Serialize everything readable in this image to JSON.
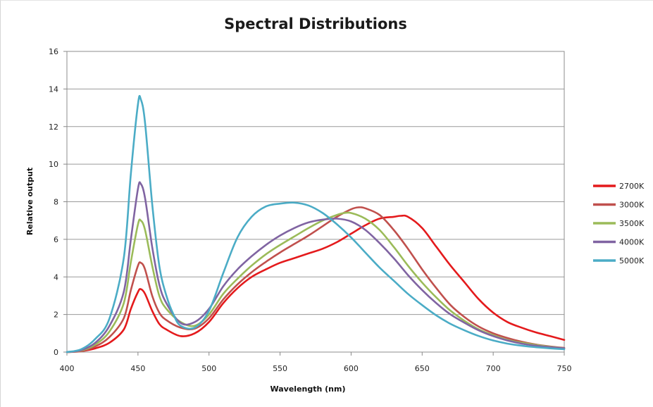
{
  "chart_data": {
    "type": "line",
    "title": "Spectral Distributions",
    "xlabel": "Wavelength (nm)",
    "ylabel": "Relative output",
    "xlim": [
      400,
      750
    ],
    "ylim": [
      0,
      16
    ],
    "x_ticks": [
      "400",
      "450",
      "500",
      "550",
      "600",
      "650",
      "700",
      "750"
    ],
    "y_ticks": [
      "0",
      "2",
      "4",
      "6",
      "8",
      "10",
      "12",
      "14",
      "16"
    ],
    "grid": "horizontal",
    "legend_position": "right",
    "series": [
      {
        "name": "2700K",
        "color": "#e41a1c",
        "x": [
          400,
          410,
          420,
          430,
          440,
          445,
          450,
          452,
          455,
          460,
          465,
          470,
          480,
          490,
          500,
          510,
          520,
          530,
          540,
          550,
          560,
          570,
          580,
          590,
          600,
          610,
          620,
          630,
          635,
          640,
          650,
          660,
          670,
          680,
          690,
          700,
          710,
          720,
          730,
          740,
          750
        ],
        "y": [
          0,
          0.05,
          0.2,
          0.5,
          1.2,
          2.3,
          3.2,
          3.35,
          3.1,
          2.2,
          1.5,
          1.2,
          0.85,
          1.0,
          1.6,
          2.6,
          3.4,
          4.0,
          4.4,
          4.75,
          5.0,
          5.25,
          5.5,
          5.85,
          6.3,
          6.75,
          7.1,
          7.2,
          7.25,
          7.2,
          6.6,
          5.6,
          4.6,
          3.7,
          2.8,
          2.1,
          1.6,
          1.3,
          1.05,
          0.85,
          0.65
        ]
      },
      {
        "name": "3000K",
        "color": "#c0504d",
        "x": [
          400,
          410,
          420,
          430,
          440,
          445,
          450,
          452,
          455,
          460,
          465,
          470,
          480,
          490,
          500,
          510,
          520,
          530,
          540,
          550,
          560,
          570,
          580,
          590,
          600,
          605,
          610,
          620,
          630,
          640,
          650,
          660,
          670,
          680,
          690,
          700,
          710,
          720,
          730,
          740,
          750
        ],
        "y": [
          0,
          0.05,
          0.3,
          0.8,
          1.8,
          3.3,
          4.6,
          4.75,
          4.4,
          3.0,
          2.1,
          1.7,
          1.3,
          1.25,
          1.8,
          2.8,
          3.6,
          4.25,
          4.8,
          5.3,
          5.75,
          6.2,
          6.7,
          7.2,
          7.6,
          7.7,
          7.65,
          7.3,
          6.5,
          5.5,
          4.4,
          3.4,
          2.5,
          1.85,
          1.35,
          1.0,
          0.75,
          0.55,
          0.4,
          0.3,
          0.22
        ]
      },
      {
        "name": "3500K",
        "color": "#9bbb59",
        "x": [
          400,
          410,
          420,
          430,
          440,
          445,
          450,
          452,
          455,
          460,
          465,
          470,
          480,
          490,
          500,
          510,
          520,
          530,
          540,
          550,
          560,
          570,
          580,
          590,
          595,
          600,
          610,
          620,
          630,
          640,
          650,
          660,
          670,
          680,
          690,
          700,
          710,
          720,
          730,
          740,
          750
        ],
        "y": [
          0,
          0.08,
          0.4,
          1.1,
          2.6,
          4.8,
          6.8,
          7.0,
          6.5,
          4.6,
          3.0,
          2.3,
          1.6,
          1.4,
          2.0,
          3.1,
          3.9,
          4.6,
          5.2,
          5.7,
          6.15,
          6.6,
          7.0,
          7.3,
          7.4,
          7.4,
          7.1,
          6.5,
          5.6,
          4.6,
          3.7,
          2.9,
          2.2,
          1.65,
          1.2,
          0.9,
          0.65,
          0.5,
          0.38,
          0.28,
          0.2
        ]
      },
      {
        "name": "4000K",
        "color": "#8064a2",
        "x": [
          400,
          410,
          420,
          430,
          440,
          445,
          450,
          452,
          455,
          460,
          465,
          470,
          480,
          490,
          500,
          510,
          520,
          530,
          540,
          550,
          560,
          570,
          580,
          590,
          600,
          610,
          620,
          630,
          640,
          650,
          660,
          670,
          680,
          690,
          700,
          710,
          720,
          730,
          740,
          750
        ],
        "y": [
          0,
          0.1,
          0.5,
          1.4,
          3.2,
          6.0,
          8.7,
          8.95,
          8.2,
          5.6,
          3.6,
          2.6,
          1.55,
          1.6,
          2.3,
          3.5,
          4.4,
          5.1,
          5.7,
          6.2,
          6.6,
          6.9,
          7.05,
          7.1,
          6.95,
          6.5,
          5.8,
          5.0,
          4.1,
          3.3,
          2.6,
          2.0,
          1.55,
          1.15,
          0.85,
          0.62,
          0.45,
          0.34,
          0.26,
          0.2
        ]
      },
      {
        "name": "5000K",
        "color": "#4bacc6",
        "x": [
          400,
          410,
          420,
          430,
          440,
          445,
          450,
          452,
          455,
          460,
          465,
          470,
          475,
          480,
          490,
          500,
          510,
          520,
          530,
          540,
          550,
          560,
          570,
          580,
          590,
          600,
          610,
          620,
          630,
          640,
          650,
          660,
          670,
          680,
          690,
          700,
          710,
          720,
          730,
          740,
          750
        ],
        "y": [
          0,
          0.15,
          0.7,
          1.8,
          5.0,
          9.5,
          13.2,
          13.45,
          12.2,
          7.9,
          4.6,
          3.0,
          2.0,
          1.4,
          1.3,
          2.2,
          4.2,
          6.1,
          7.2,
          7.75,
          7.9,
          7.95,
          7.8,
          7.4,
          6.8,
          6.1,
          5.3,
          4.5,
          3.8,
          3.1,
          2.5,
          1.95,
          1.5,
          1.15,
          0.85,
          0.62,
          0.45,
          0.34,
          0.26,
          0.2,
          0.15
        ]
      }
    ]
  }
}
